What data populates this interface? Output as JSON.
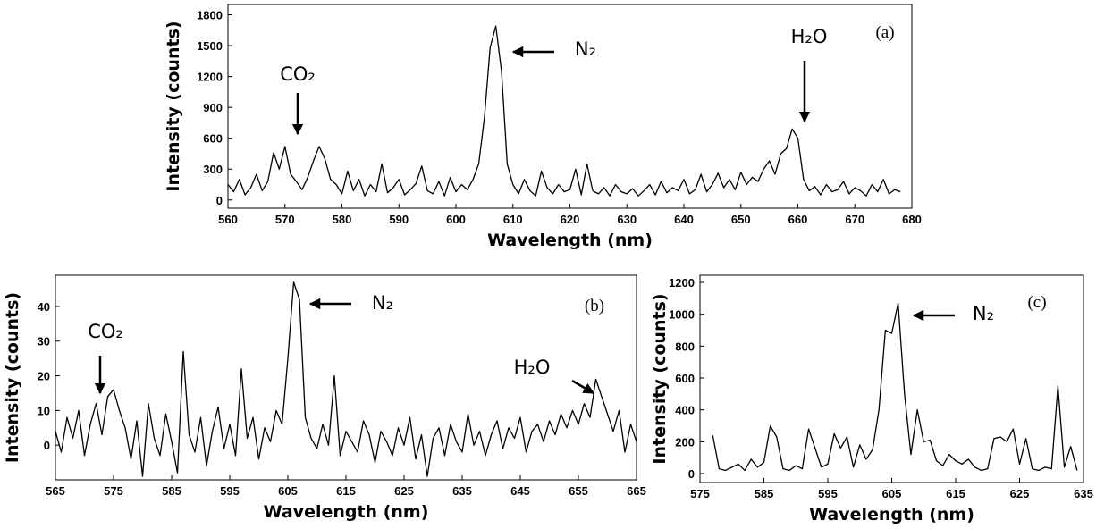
{
  "chart_data": [
    {
      "type": "line",
      "panel_label": "(a)",
      "xlabel": "Wavelength (nm)",
      "ylabel": "Intensity (counts)",
      "color": "#000000",
      "xlim": [
        560,
        680
      ],
      "ylim": [
        -80,
        1900
      ],
      "xticks": [
        560,
        570,
        580,
        590,
        600,
        610,
        620,
        630,
        640,
        650,
        660,
        670,
        680
      ],
      "yticks": [
        0,
        300,
        600,
        900,
        1200,
        1500,
        1800
      ],
      "annotations": [
        "CO₂",
        "N₂",
        "H₂O"
      ],
      "x": [
        560,
        561,
        562,
        563,
        564,
        565,
        566,
        567,
        568,
        569,
        570,
        571,
        572,
        573,
        574,
        575,
        576,
        577,
        578,
        579,
        580,
        581,
        582,
        583,
        584,
        585,
        586,
        587,
        588,
        589,
        590,
        591,
        592,
        593,
        594,
        595,
        596,
        597,
        598,
        599,
        600,
        601,
        602,
        603,
        604,
        605,
        606,
        607,
        608,
        609,
        610,
        611,
        612,
        613,
        614,
        615,
        616,
        617,
        618,
        619,
        620,
        621,
        622,
        623,
        624,
        625,
        626,
        627,
        628,
        629,
        630,
        631,
        632,
        633,
        634,
        635,
        636,
        637,
        638,
        639,
        640,
        641,
        642,
        643,
        644,
        645,
        646,
        647,
        648,
        649,
        650,
        651,
        652,
        653,
        654,
        655,
        656,
        657,
        658,
        659,
        660,
        661,
        662,
        663,
        664,
        665,
        666,
        667,
        668,
        669,
        670,
        671,
        672,
        673,
        674,
        675,
        676,
        677,
        678
      ],
      "values": [
        150,
        80,
        200,
        50,
        120,
        250,
        90,
        180,
        460,
        300,
        520,
        250,
        180,
        100,
        220,
        380,
        520,
        400,
        200,
        150,
        60,
        280,
        90,
        200,
        40,
        150,
        80,
        350,
        70,
        120,
        200,
        50,
        100,
        160,
        330,
        90,
        60,
        180,
        40,
        220,
        80,
        150,
        100,
        200,
        350,
        800,
        1480,
        1690,
        1250,
        350,
        150,
        60,
        200,
        90,
        40,
        280,
        120,
        60,
        150,
        80,
        100,
        300,
        50,
        350,
        90,
        60,
        120,
        40,
        150,
        80,
        60,
        110,
        40,
        90,
        150,
        50,
        180,
        70,
        120,
        90,
        200,
        60,
        100,
        250,
        80,
        150,
        260,
        120,
        200,
        100,
        270,
        150,
        220,
        180,
        300,
        380,
        250,
        450,
        500,
        690,
        600,
        200,
        90,
        130,
        50,
        150,
        80,
        100,
        180,
        60,
        120,
        90,
        40,
        150,
        80,
        200,
        60,
        100,
        80
      ]
    },
    {
      "type": "line",
      "panel_label": "(b)",
      "xlabel": "Wavelength (nm)",
      "ylabel": "Intensity (counts)",
      "color": "#000000",
      "xlim": [
        565,
        665
      ],
      "ylim": [
        -10,
        49
      ],
      "xticks": [
        565,
        575,
        585,
        595,
        605,
        615,
        625,
        635,
        645,
        655,
        665
      ],
      "yticks": [
        0,
        10,
        20,
        30,
        40
      ],
      "annotations": [
        "CO₂",
        "N₂",
        "H₂O"
      ],
      "x": [
        565,
        566,
        567,
        568,
        569,
        570,
        571,
        572,
        573,
        574,
        575,
        576,
        577,
        578,
        579,
        580,
        581,
        582,
        583,
        584,
        585,
        586,
        587,
        588,
        589,
        590,
        591,
        592,
        593,
        594,
        595,
        596,
        597,
        598,
        599,
        600,
        601,
        602,
        603,
        604,
        605,
        606,
        607,
        608,
        609,
        610,
        611,
        612,
        613,
        614,
        615,
        616,
        617,
        618,
        619,
        620,
        621,
        622,
        623,
        624,
        625,
        626,
        627,
        628,
        629,
        630,
        631,
        632,
        633,
        634,
        635,
        636,
        637,
        638,
        639,
        640,
        641,
        642,
        643,
        644,
        645,
        646,
        647,
        648,
        649,
        650,
        651,
        652,
        653,
        654,
        655,
        656,
        657,
        658,
        659,
        660,
        661,
        662,
        663,
        664,
        665
      ],
      "values": [
        4,
        -2,
        8,
        2,
        10,
        -3,
        6,
        12,
        3,
        14,
        16,
        10,
        5,
        -4,
        7,
        -9,
        12,
        2,
        -3,
        9,
        1,
        -8,
        27,
        3,
        -2,
        8,
        -6,
        4,
        11,
        -1,
        6,
        -3,
        22,
        2,
        8,
        -4,
        5,
        1,
        10,
        6,
        25,
        47,
        42,
        8,
        2,
        -1,
        6,
        0,
        20,
        -3,
        4,
        1,
        -2,
        7,
        3,
        -5,
        4,
        1,
        -3,
        5,
        0,
        8,
        -4,
        3,
        -9,
        2,
        5,
        -3,
        6,
        1,
        -2,
        9,
        0,
        4,
        -3,
        3,
        7,
        -1,
        5,
        2,
        8,
        -2,
        4,
        6,
        1,
        7,
        3,
        9,
        5,
        10,
        6,
        12,
        8,
        19,
        14,
        9,
        4,
        10,
        -2,
        6,
        1
      ]
    },
    {
      "type": "line",
      "panel_label": "(c)",
      "xlabel": "Wavelength (nm)",
      "ylabel": "Intensity (counts)",
      "color": "#000000",
      "xlim": [
        575,
        635
      ],
      "ylim": [
        -56,
        1245
      ],
      "xticks": [
        575,
        585,
        595,
        605,
        615,
        625,
        635
      ],
      "yticks": [
        0,
        200,
        400,
        600,
        800,
        1000,
        1200
      ],
      "annotations": [
        "N₂"
      ],
      "x": [
        577,
        578,
        579,
        580,
        581,
        582,
        583,
        584,
        585,
        586,
        587,
        588,
        589,
        590,
        591,
        592,
        593,
        594,
        595,
        596,
        597,
        598,
        599,
        600,
        601,
        602,
        603,
        604,
        605,
        606,
        607,
        608,
        609,
        610,
        611,
        612,
        613,
        614,
        615,
        616,
        617,
        618,
        619,
        620,
        621,
        622,
        623,
        624,
        625,
        626,
        627,
        628,
        629,
        630,
        631,
        632,
        633,
        634
      ],
      "values": [
        240,
        30,
        20,
        40,
        60,
        20,
        90,
        40,
        70,
        300,
        230,
        30,
        20,
        50,
        30,
        280,
        160,
        40,
        60,
        250,
        160,
        230,
        40,
        180,
        90,
        150,
        400,
        900,
        880,
        1070,
        500,
        120,
        400,
        200,
        210,
        80,
        50,
        120,
        80,
        60,
        90,
        40,
        20,
        30,
        220,
        230,
        200,
        280,
        60,
        220,
        30,
        20,
        40,
        30,
        550,
        40,
        170,
        20
      ]
    }
  ]
}
